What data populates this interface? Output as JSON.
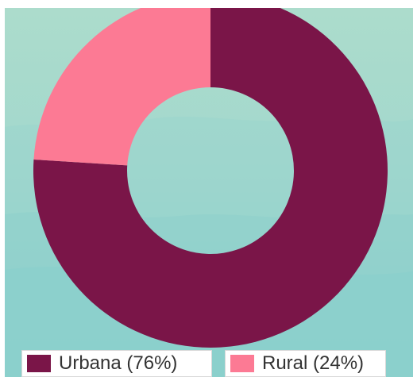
{
  "chart_data": {
    "type": "pie",
    "variant": "donut",
    "categories": [
      "Urbana",
      "Rural"
    ],
    "values": [
      76,
      24
    ],
    "unit": "%",
    "colors": [
      "#7a1548",
      "#fc7a94"
    ],
    "background": "#a3d8cd",
    "legend": {
      "placement": "bottom",
      "entries": [
        {
          "label": "Urbana (76%)",
          "color": "#7a1548"
        },
        {
          "label": "Rural (24%)",
          "color": "#fc7a94"
        }
      ]
    }
  }
}
